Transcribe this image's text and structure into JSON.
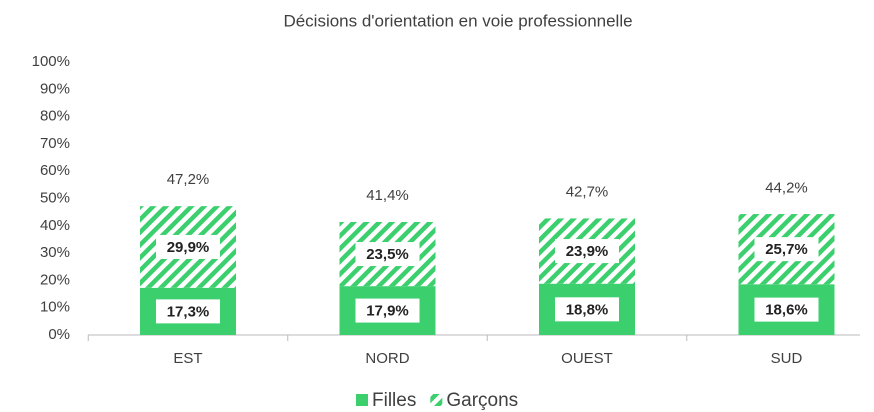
{
  "chart_data": {
    "type": "stacked-bar",
    "title": "Décisions d'orientation en voie professionnelle",
    "categories": [
      "EST",
      "NORD",
      "OUEST",
      "SUD"
    ],
    "series": [
      {
        "name": "Filles",
        "color": "#3ccf6e",
        "pattern": "solid",
        "values": [
          17.3,
          17.9,
          18.8,
          18.6
        ],
        "value_labels": [
          "17,3%",
          "17,9%",
          "18,8%",
          "18,6%"
        ]
      },
      {
        "name": "Garçons",
        "color": "#3ccf6e",
        "pattern": "hatch",
        "values": [
          29.9,
          23.5,
          23.9,
          25.7
        ],
        "value_labels": [
          "29,9%",
          "23,5%",
          "23,9%",
          "25,7%"
        ]
      }
    ],
    "totals": [
      47.2,
      41.4,
      42.7,
      44.2
    ],
    "total_labels": [
      "47,2%",
      "41,4%",
      "42,7%",
      "44,2%"
    ],
    "ylim": [
      0,
      100
    ],
    "yticks": [
      {
        "value": 0,
        "label": "0%"
      },
      {
        "value": 10,
        "label": "10%"
      },
      {
        "value": 20,
        "label": "20%"
      },
      {
        "value": 30,
        "label": "30%"
      },
      {
        "value": 40,
        "label": "40%"
      },
      {
        "value": 50,
        "label": "50%"
      },
      {
        "value": 60,
        "label": "60%"
      },
      {
        "value": 70,
        "label": "70%"
      },
      {
        "value": 80,
        "label": "80%"
      },
      {
        "value": 90,
        "label": "90%"
      },
      {
        "value": 100,
        "label": "100%"
      }
    ],
    "grid": false,
    "legend": "bottom"
  }
}
